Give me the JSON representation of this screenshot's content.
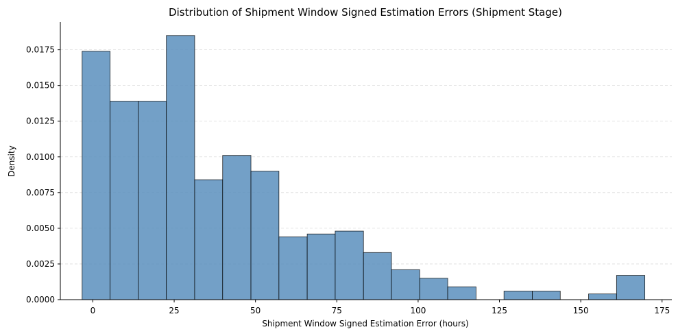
{
  "chart_data": {
    "type": "bar",
    "title": "Distribution of Shipment Window Signed Estimation Errors (Shipment Stage)",
    "xlabel": "Shipment Window Signed Estimation Error (hours)",
    "ylabel": "Density",
    "xlim": [
      -10,
      178
    ],
    "ylim": [
      0,
      0.01945
    ],
    "x_ticks": [
      0,
      25,
      50,
      75,
      100,
      125,
      150,
      175
    ],
    "y_ticks": [
      0.0,
      0.0025,
      0.005,
      0.0075,
      0.01,
      0.0125,
      0.015,
      0.0175
    ],
    "x_tick_labels": [
      "0",
      "25",
      "50",
      "75",
      "100",
      "125",
      "150",
      "175"
    ],
    "y_tick_labels": [
      "0.0000",
      "0.0025",
      "0.0050",
      "0.0075",
      "0.0100",
      "0.0125",
      "0.0150",
      "0.0175"
    ],
    "grid": "y-dashed",
    "bar_color": "#5b8fbd",
    "bins": [
      {
        "x0": -3.3,
        "x1": 5.3,
        "value": 0.0174
      },
      {
        "x0": 5.3,
        "x1": 14.0,
        "value": 0.0139
      },
      {
        "x0": 14.0,
        "x1": 22.6,
        "value": 0.0139
      },
      {
        "x0": 22.6,
        "x1": 31.3,
        "value": 0.0185
      },
      {
        "x0": 31.3,
        "x1": 39.9,
        "value": 0.0084
      },
      {
        "x0": 39.9,
        "x1": 48.6,
        "value": 0.0101
      },
      {
        "x0": 48.6,
        "x1": 57.2,
        "value": 0.009
      },
      {
        "x0": 57.2,
        "x1": 65.9,
        "value": 0.0044
      },
      {
        "x0": 65.9,
        "x1": 74.5,
        "value": 0.0046
      },
      {
        "x0": 74.5,
        "x1": 83.2,
        "value": 0.0048
      },
      {
        "x0": 83.2,
        "x1": 91.8,
        "value": 0.0033
      },
      {
        "x0": 91.8,
        "x1": 100.5,
        "value": 0.0021
      },
      {
        "x0": 100.5,
        "x1": 109.1,
        "value": 0.0015
      },
      {
        "x0": 109.1,
        "x1": 117.8,
        "value": 0.0009
      },
      {
        "x0": 117.8,
        "x1": 126.4,
        "value": 0.0
      },
      {
        "x0": 126.4,
        "x1": 135.1,
        "value": 0.0006
      },
      {
        "x0": 135.1,
        "x1": 143.7,
        "value": 0.0006
      },
      {
        "x0": 143.7,
        "x1": 152.4,
        "value": 0.0
      },
      {
        "x0": 152.4,
        "x1": 161.0,
        "value": 0.0004
      },
      {
        "x0": 161.0,
        "x1": 169.7,
        "value": 0.0017
      }
    ]
  }
}
